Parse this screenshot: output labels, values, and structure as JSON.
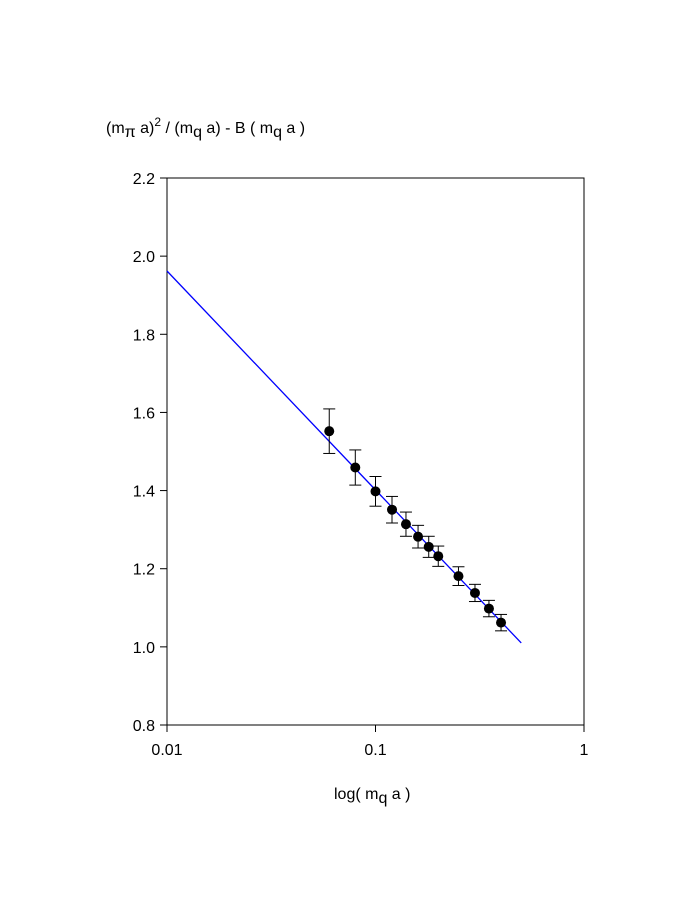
{
  "chart_data": {
    "type": "scatter",
    "xscale": "log",
    "xlim": [
      0.01,
      1
    ],
    "ylim": [
      0.8,
      2.2
    ],
    "xticks": [
      "0.01",
      "0.1",
      "1"
    ],
    "yticks": [
      "0.8",
      "1.0",
      "1.2",
      "1.4",
      "1.6",
      "1.8",
      "2.0",
      "2.2"
    ],
    "ylabel": {
      "m": "(m",
      "pi": "π",
      "a1": " a)",
      "exp": "2",
      "div": " / (m",
      "q1": "q",
      "a2": " a)  -  B ( m",
      "q2": "q",
      "a3": " a )"
    },
    "xlabel": {
      "pre": "log( m",
      "q": "q",
      "post": " a )"
    },
    "series": [
      {
        "points": [
          {
            "x": 0.06,
            "y": 1.552,
            "err": 0.057
          },
          {
            "x": 0.08,
            "y": 1.459,
            "err": 0.045
          },
          {
            "x": 0.1,
            "y": 1.398,
            "err": 0.038
          },
          {
            "x": 0.12,
            "y": 1.351,
            "err": 0.034
          },
          {
            "x": 0.14,
            "y": 1.314,
            "err": 0.031
          },
          {
            "x": 0.16,
            "y": 1.282,
            "err": 0.029
          },
          {
            "x": 0.18,
            "y": 1.256,
            "err": 0.027
          },
          {
            "x": 0.2,
            "y": 1.232,
            "err": 0.026
          },
          {
            "x": 0.25,
            "y": 1.181,
            "err": 0.024
          },
          {
            "x": 0.3,
            "y": 1.138,
            "err": 0.022
          },
          {
            "x": 0.35,
            "y": 1.098,
            "err": 0.021
          },
          {
            "x": 0.4,
            "y": 1.062,
            "err": 0.021
          }
        ],
        "color": "#000000"
      }
    ],
    "fit_line": {
      "x": [
        0.01,
        0.5
      ],
      "y": [
        1.962,
        1.01
      ],
      "color": "#0000ff"
    },
    "grid": false
  }
}
